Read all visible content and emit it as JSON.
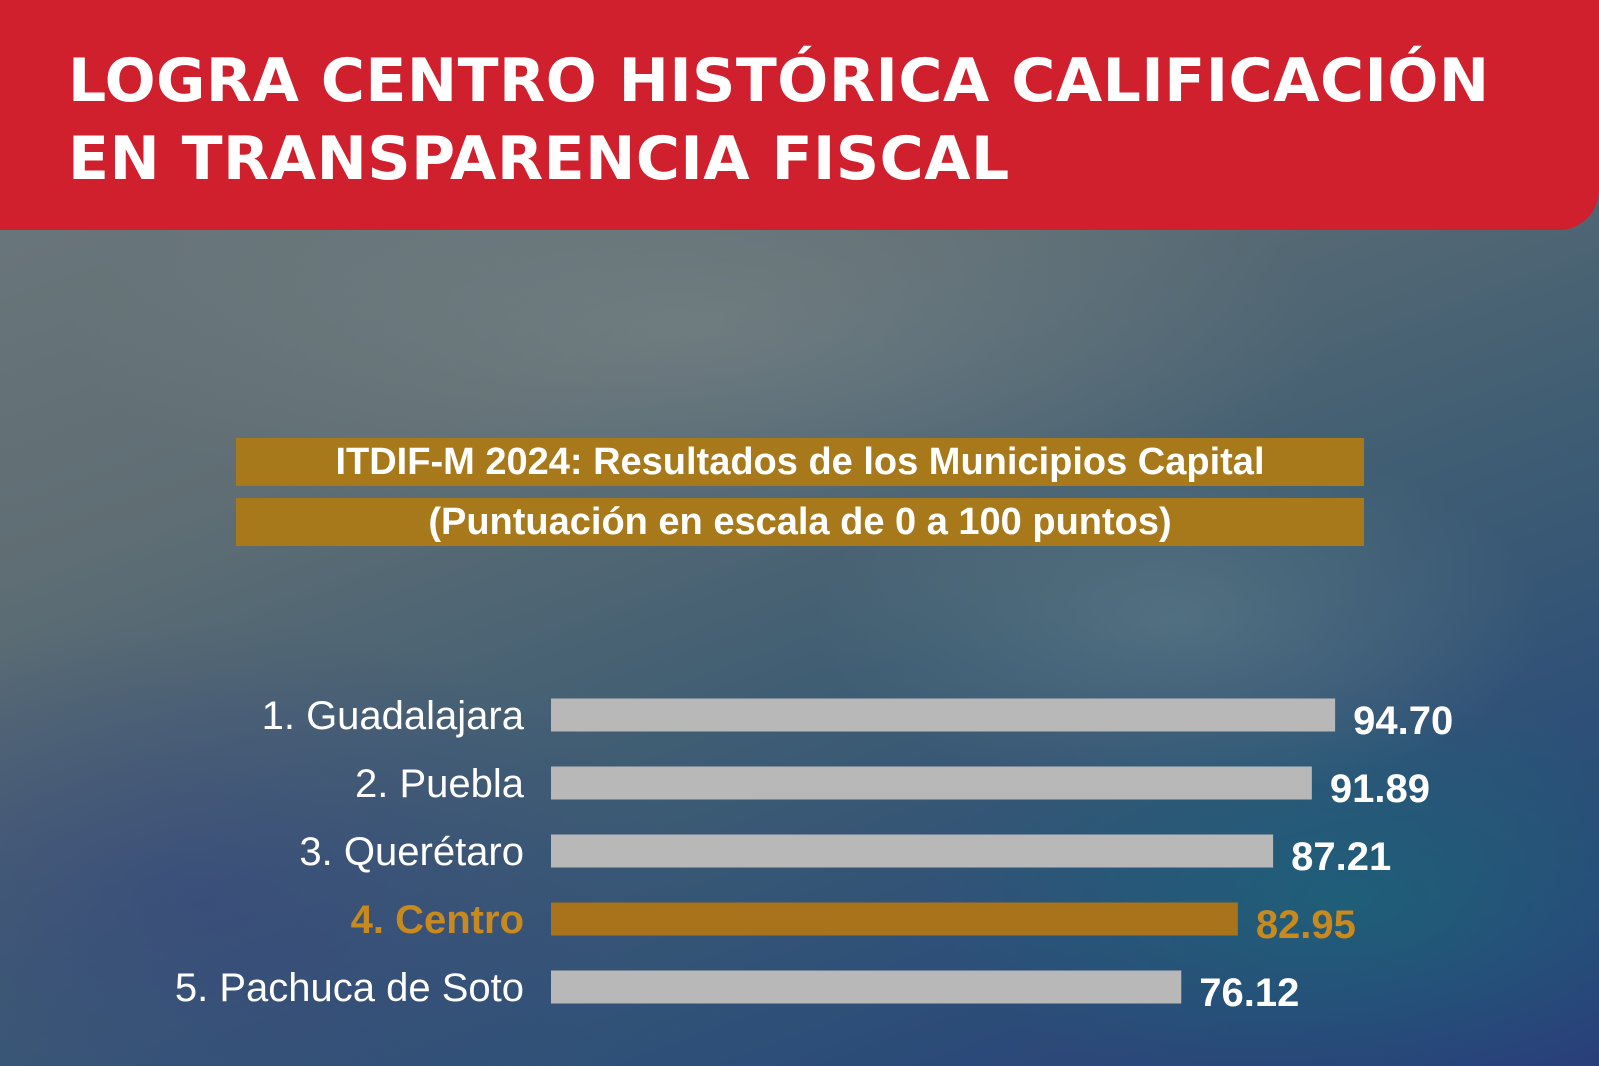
{
  "header": {
    "title_line1": "LOGRA CENTRO HISTÓRICA CALIFICACIÓN",
    "title_line2": "EN TRANSPARENCIA FISCAL"
  },
  "chart_data": {
    "type": "bar",
    "orientation": "horizontal",
    "title": "ITDIF-M 2024: Resultados de los Municipios Capital",
    "subtitle": "(Puntuación en escala de 0 a 100 puntos)",
    "categories": [
      "1. Guadalajara",
      "2. Puebla",
      "3. Querétaro",
      "4. Centro",
      "5. Pachuca de Soto"
    ],
    "values": [
      94.7,
      91.89,
      87.21,
      82.95,
      76.12
    ],
    "value_labels": [
      "94.70",
      "91.89",
      "87.21",
      "82.95",
      "76.12"
    ],
    "highlight_index": 3,
    "colors": {
      "bar": "#b8b8b8",
      "highlight": "#a8731a",
      "label": "#ffffff",
      "highlight_label": "#c8891e"
    },
    "xlim": [
      0,
      100
    ]
  }
}
